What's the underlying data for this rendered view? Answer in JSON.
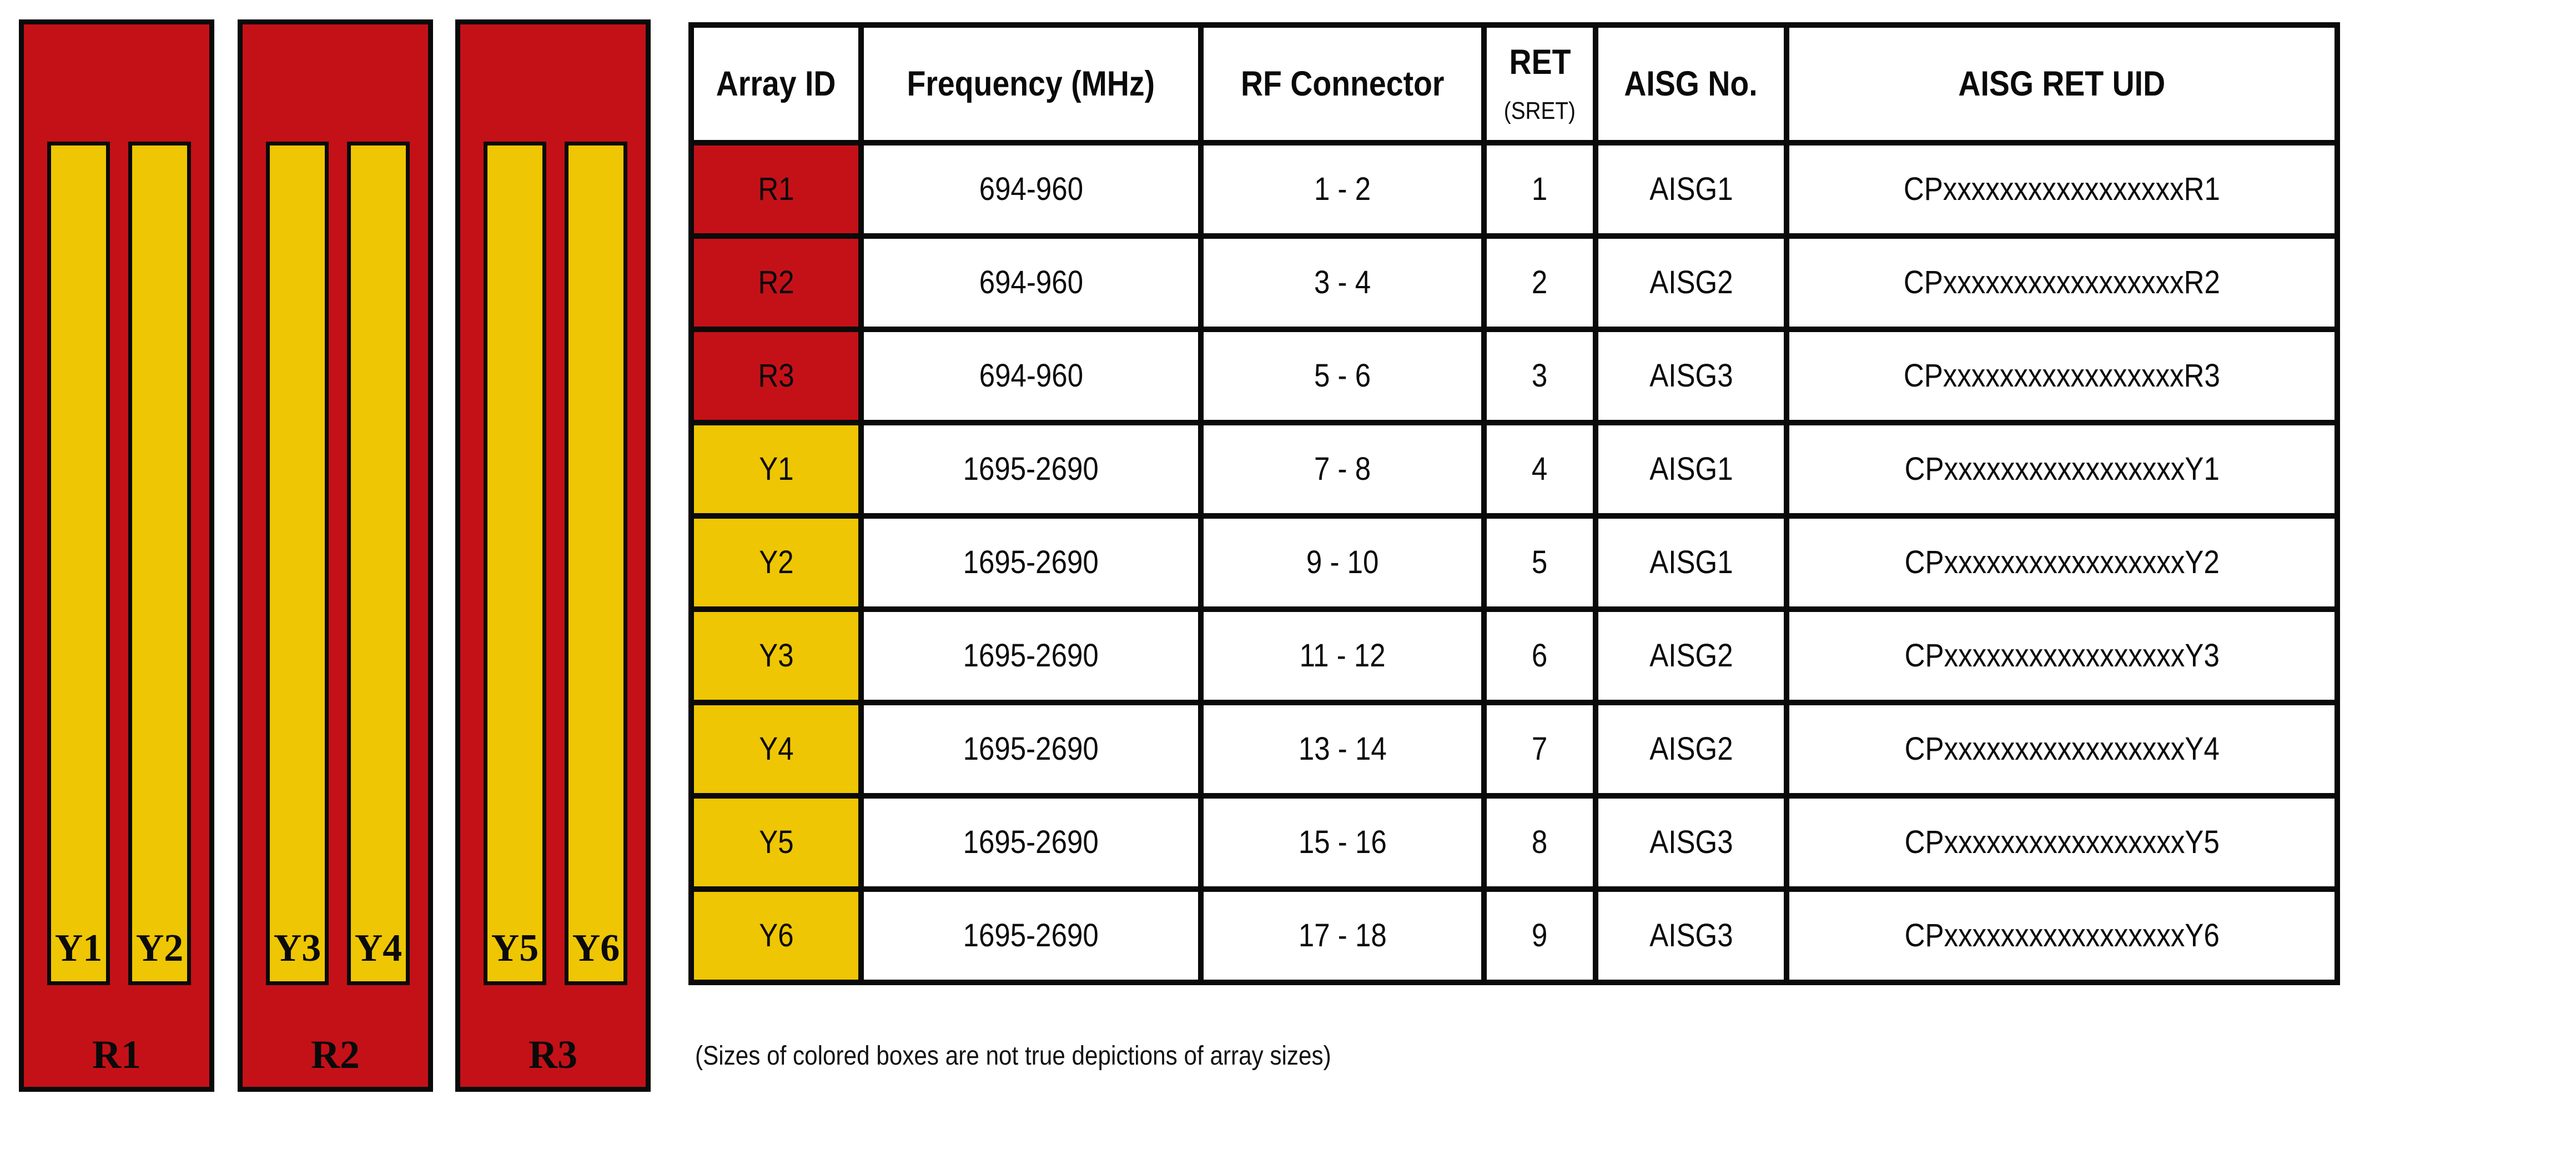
{
  "diagram": {
    "panels": [
      {
        "label": "R1",
        "bars": [
          {
            "label": "Y1"
          },
          {
            "label": "Y2"
          }
        ]
      },
      {
        "label": "R2",
        "bars": [
          {
            "label": "Y3"
          },
          {
            "label": "Y4"
          }
        ]
      },
      {
        "label": "R3",
        "bars": [
          {
            "label": "Y5"
          },
          {
            "label": "Y6"
          }
        ]
      }
    ],
    "note": "(Sizes of colored boxes are not true depictions of array sizes)"
  },
  "table": {
    "headers": {
      "array_id": "Array ID",
      "frequency": "Frequency (MHz)",
      "rf_connector": "RF Connector",
      "ret": "RET",
      "ret_sub": "(SRET)",
      "aisg_no": "AISG No.",
      "aisg_ret_uid": "AISG RET UID"
    },
    "rows": [
      {
        "array_id": "R1",
        "frequency": "694-960",
        "rf_connector": "1 - 2",
        "ret": "1",
        "aisg_no": "AISG1",
        "aisg_ret_uid": "CPxxxxxxxxxxxxxxxxxR1"
      },
      {
        "array_id": "R2",
        "frequency": "694-960",
        "rf_connector": "3 - 4",
        "ret": "2",
        "aisg_no": "AISG2",
        "aisg_ret_uid": "CPxxxxxxxxxxxxxxxxxR2"
      },
      {
        "array_id": "R3",
        "frequency": "694-960",
        "rf_connector": "5 - 6",
        "ret": "3",
        "aisg_no": "AISG3",
        "aisg_ret_uid": "CPxxxxxxxxxxxxxxxxxR3"
      },
      {
        "array_id": "Y1",
        "frequency": "1695-2690",
        "rf_connector": "7 - 8",
        "ret": "4",
        "aisg_no": "AISG1",
        "aisg_ret_uid": "CPxxxxxxxxxxxxxxxxxY1"
      },
      {
        "array_id": "Y2",
        "frequency": "1695-2690",
        "rf_connector": "9 - 10",
        "ret": "5",
        "aisg_no": "AISG1",
        "aisg_ret_uid": "CPxxxxxxxxxxxxxxxxxY2"
      },
      {
        "array_id": "Y3",
        "frequency": "1695-2690",
        "rf_connector": "11 - 12",
        "ret": "6",
        "aisg_no": "AISG2",
        "aisg_ret_uid": "CPxxxxxxxxxxxxxxxxxY3"
      },
      {
        "array_id": "Y4",
        "frequency": "1695-2690",
        "rf_connector": "13 - 14",
        "ret": "7",
        "aisg_no": "AISG2",
        "aisg_ret_uid": "CPxxxxxxxxxxxxxxxxxY4"
      },
      {
        "array_id": "Y5",
        "frequency": "1695-2690",
        "rf_connector": "15 - 16",
        "ret": "8",
        "aisg_no": "AISG3",
        "aisg_ret_uid": "CPxxxxxxxxxxxxxxxxxY5"
      },
      {
        "array_id": "Y6",
        "frequency": "1695-2690",
        "rf_connector": "17 - 18",
        "ret": "9",
        "aisg_no": "AISG3",
        "aisg_ret_uid": "CPxxxxxxxxxxxxxxxxxY6"
      }
    ]
  },
  "colors": {
    "panel_red": "#C41118",
    "bar_yellow": "#EEC603",
    "line_black": "#0A0A0A",
    "background": "#FFFFFF"
  }
}
